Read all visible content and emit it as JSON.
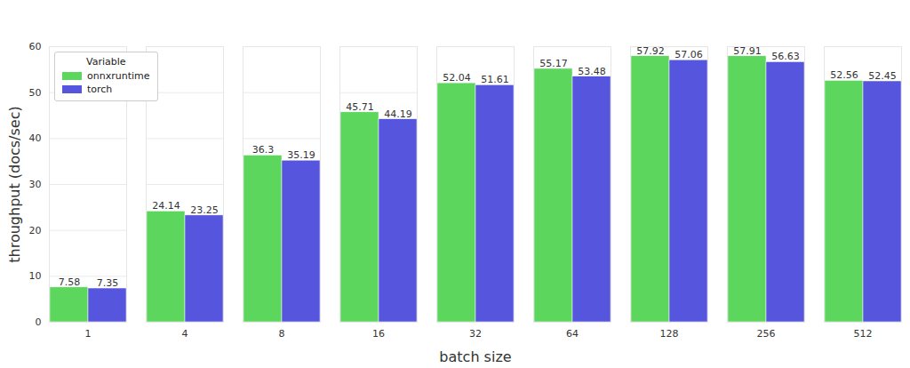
{
  "chart_data": {
    "type": "bar",
    "x_label": "batch size",
    "y_label": "throughput (docs/sec)",
    "categories": [
      1,
      4,
      8,
      16,
      32,
      64,
      128,
      256,
      512
    ],
    "series": [
      {
        "name": "onnxruntime",
        "color": "#5cd65c",
        "values": [
          7.58,
          24.14,
          36.3,
          45.71,
          52.04,
          55.17,
          57.92,
          57.91,
          52.56
        ]
      },
      {
        "name": "torch",
        "color": "#5555dd",
        "values": [
          7.35,
          23.25,
          35.19,
          44.19,
          51.61,
          53.48,
          57.06,
          56.63,
          52.45
        ]
      }
    ],
    "ylim": [
      0,
      60
    ],
    "yticks": [
      0,
      10,
      20,
      30,
      40,
      50,
      60
    ],
    "grid": true,
    "legend": "upper left",
    "legend_title": "Variable",
    "data_labels": true
  }
}
